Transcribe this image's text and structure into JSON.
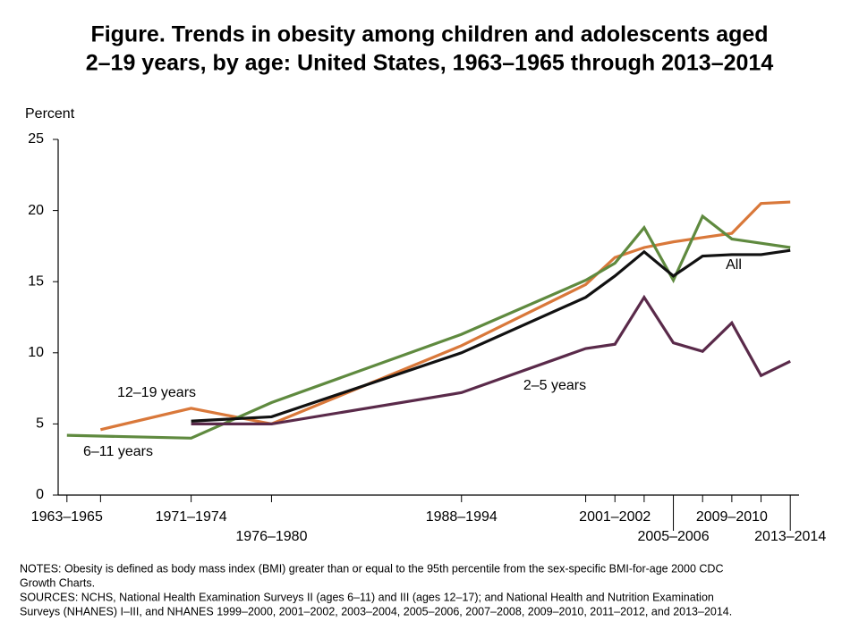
{
  "chart_data": {
    "type": "line",
    "title": [
      "Figure. Trends in obesity among children and adolescents aged",
      "2–19 years, by age: United States, 1963–1965 through 2013–2014"
    ],
    "y_label": "Percent",
    "xlim": [
      1963.4,
      2014.1
    ],
    "xticks": [
      {
        "value": 1964,
        "label": "1963–1965"
      },
      {
        "value": 1966.3,
        "label": null
      },
      {
        "value": 1972.5,
        "label": "1971–1974"
      },
      {
        "value": 1978,
        "label": "1976–1980"
      },
      {
        "value": 1991,
        "label": "1988–1994"
      },
      {
        "value": 1999.5,
        "label": null
      },
      {
        "value": 2001.5,
        "label": "2001–2002"
      },
      {
        "value": 2003.5,
        "label": null
      },
      {
        "value": 2005.5,
        "label": "2005–2006"
      },
      {
        "value": 2007.5,
        "label": null
      },
      {
        "value": 2009.5,
        "label": "2009–2010"
      },
      {
        "value": 2011.5,
        "label": null
      },
      {
        "value": 2013.5,
        "label": "2013–2014"
      }
    ],
    "ylim": [
      0,
      25
    ],
    "yticks": [
      0,
      5,
      10,
      15,
      20,
      25
    ],
    "grid": false,
    "series": [
      {
        "name": "12–19 years",
        "color": "#d9783a",
        "x": [
          1966.3,
          1972.5,
          1978,
          1991,
          1999.5,
          2001.5,
          2003.5,
          2005.5,
          2007.5,
          2009.5,
          2011.5,
          2013.5
        ],
        "values": [
          4.6,
          6.1,
          5.0,
          10.5,
          14.8,
          16.7,
          17.4,
          17.8,
          18.1,
          18.4,
          20.5,
          20.6
        ]
      },
      {
        "name": "6–11 years",
        "color": "#5f8a3f",
        "x": [
          1964,
          1972.5,
          1978,
          1991,
          1999.5,
          2001.5,
          2003.5,
          2005.5,
          2007.5,
          2009.5,
          2011.5,
          2013.5
        ],
        "values": [
          4.2,
          4.0,
          6.5,
          11.3,
          15.1,
          16.3,
          18.8,
          15.1,
          19.6,
          18.0,
          17.7,
          17.4
        ]
      },
      {
        "name": "2–5 years",
        "color": "#5a2a4a",
        "x": [
          1972.5,
          1978,
          1991,
          1999.5,
          2001.5,
          2003.5,
          2005.5,
          2007.5,
          2009.5,
          2011.5,
          2013.5
        ],
        "values": [
          5.0,
          5.0,
          7.2,
          10.3,
          10.6,
          13.9,
          10.7,
          10.1,
          12.1,
          8.4,
          9.4
        ]
      },
      {
        "name": "All",
        "color": "#111111",
        "x": [
          1972.5,
          1978,
          1991,
          1999.5,
          2001.5,
          2003.5,
          2005.5,
          2007.5,
          2009.5,
          2011.5,
          2013.5
        ],
        "values": [
          5.2,
          5.5,
          10.0,
          13.9,
          15.4,
          17.1,
          15.4,
          16.8,
          16.9,
          16.9,
          17.2
        ]
      }
    ],
    "notes": [
      "NOTES: Obesity is defined as body mass index (BMI) greater than or equal to the 95th percentile from the sex-specific BMI-for-age 2000 CDC",
      "Growth Charts.",
      "SOURCES: NCHS, National Health Examination Surveys II (ages 6–11) and III (ages 12–17); and National Health and Nutrition Examination",
      "Surveys (NHANES) I–III, and  NHANES 1999–2000, 2001–2002, 2003–2004, 2005–2006, 2007–2008, 2009–2010, 2011–2012, and 2013–2014."
    ]
  }
}
